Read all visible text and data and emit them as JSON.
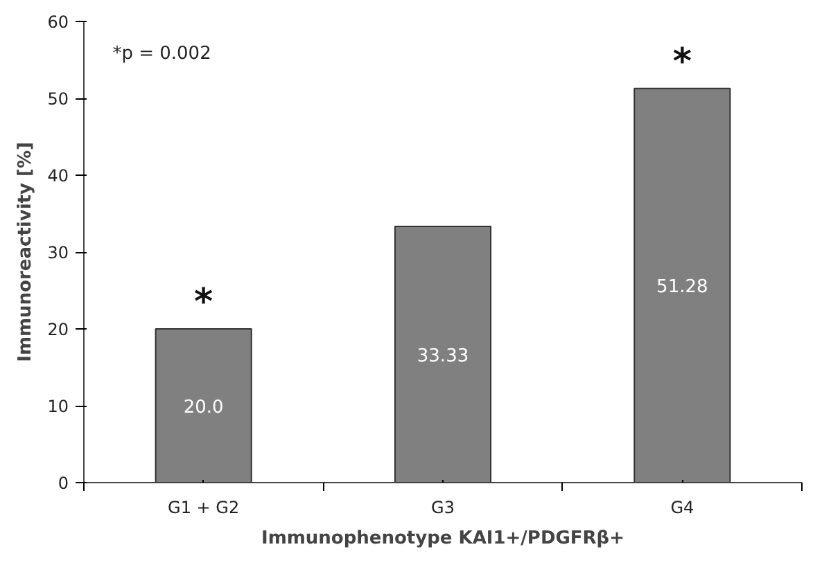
{
  "chart_data": {
    "type": "bar",
    "xlabel": "Immunophenotype KAI1+/PDGFRβ+",
    "ylabel": "Immunoreactivity [%]",
    "categories": [
      "G1 + G2",
      "G3",
      "G4"
    ],
    "values": [
      20.0,
      33.33,
      51.28
    ],
    "color": "#808080",
    "value_labels": [
      "20.0",
      "33.33",
      "51.28"
    ],
    "ylim": [
      0,
      60
    ],
    "yticks": [
      0,
      10,
      20,
      30,
      40,
      50,
      60
    ],
    "grid": false,
    "annotations": [
      "*p = 0.002",
      {
        "text": "*",
        "x": "G1 + G2",
        "y": 20.0
      },
      {
        "text": "*",
        "x": "G4",
        "y": 51.28
      }
    ]
  }
}
